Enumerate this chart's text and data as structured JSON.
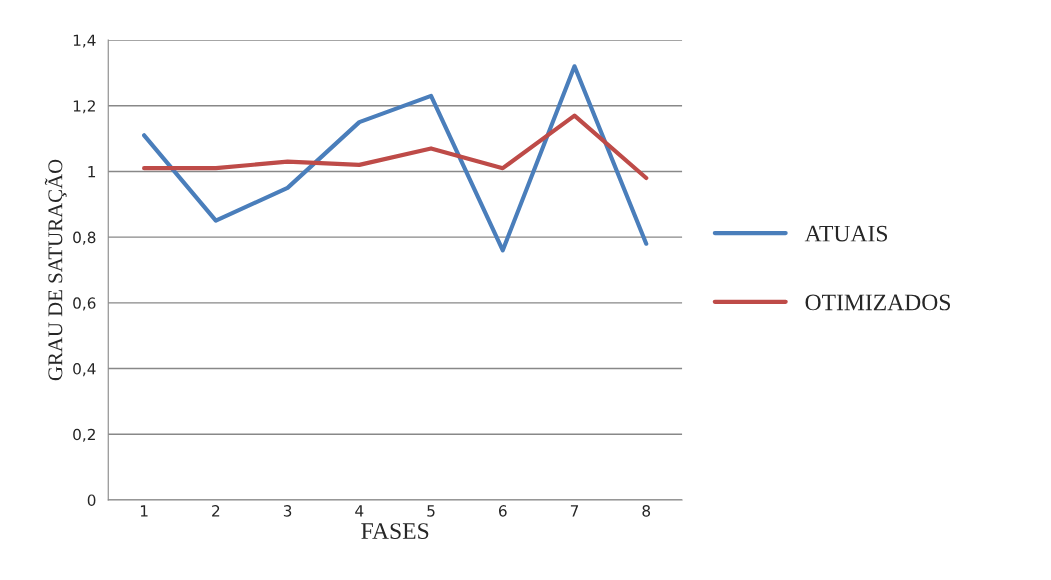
{
  "chart_data": {
    "type": "line",
    "xlabel": "FASES",
    "ylabel": "GRAU DE SATURAÇÃO",
    "categories": [
      "1",
      "2",
      "3",
      "4",
      "5",
      "6",
      "7",
      "8"
    ],
    "series": [
      {
        "name": "ATUAIS",
        "color": "#4a7ebb",
        "values": [
          1.11,
          0.85,
          0.95,
          1.15,
          1.23,
          0.76,
          1.32,
          0.78
        ]
      },
      {
        "name": "OTIMIZADOS",
        "color": "#be4b48",
        "values": [
          1.01,
          1.01,
          1.03,
          1.02,
          1.07,
          1.01,
          1.17,
          0.98
        ]
      }
    ],
    "ylim": [
      0,
      1.4
    ],
    "yticks": [
      0,
      {
        "value": 0.2,
        "label": "0,2"
      },
      {
        "value": 0.4,
        "label": "0,4"
      },
      {
        "value": 0.6,
        "label": "0,6"
      },
      {
        "value": 0.8,
        "label": "0,8"
      },
      1,
      {
        "value": 1.2,
        "label": "1,2"
      },
      {
        "value": 1.4,
        "label": "1,4"
      }
    ],
    "grid": "y",
    "legend": "right",
    "marker": "none",
    "line_style": "solid"
  }
}
